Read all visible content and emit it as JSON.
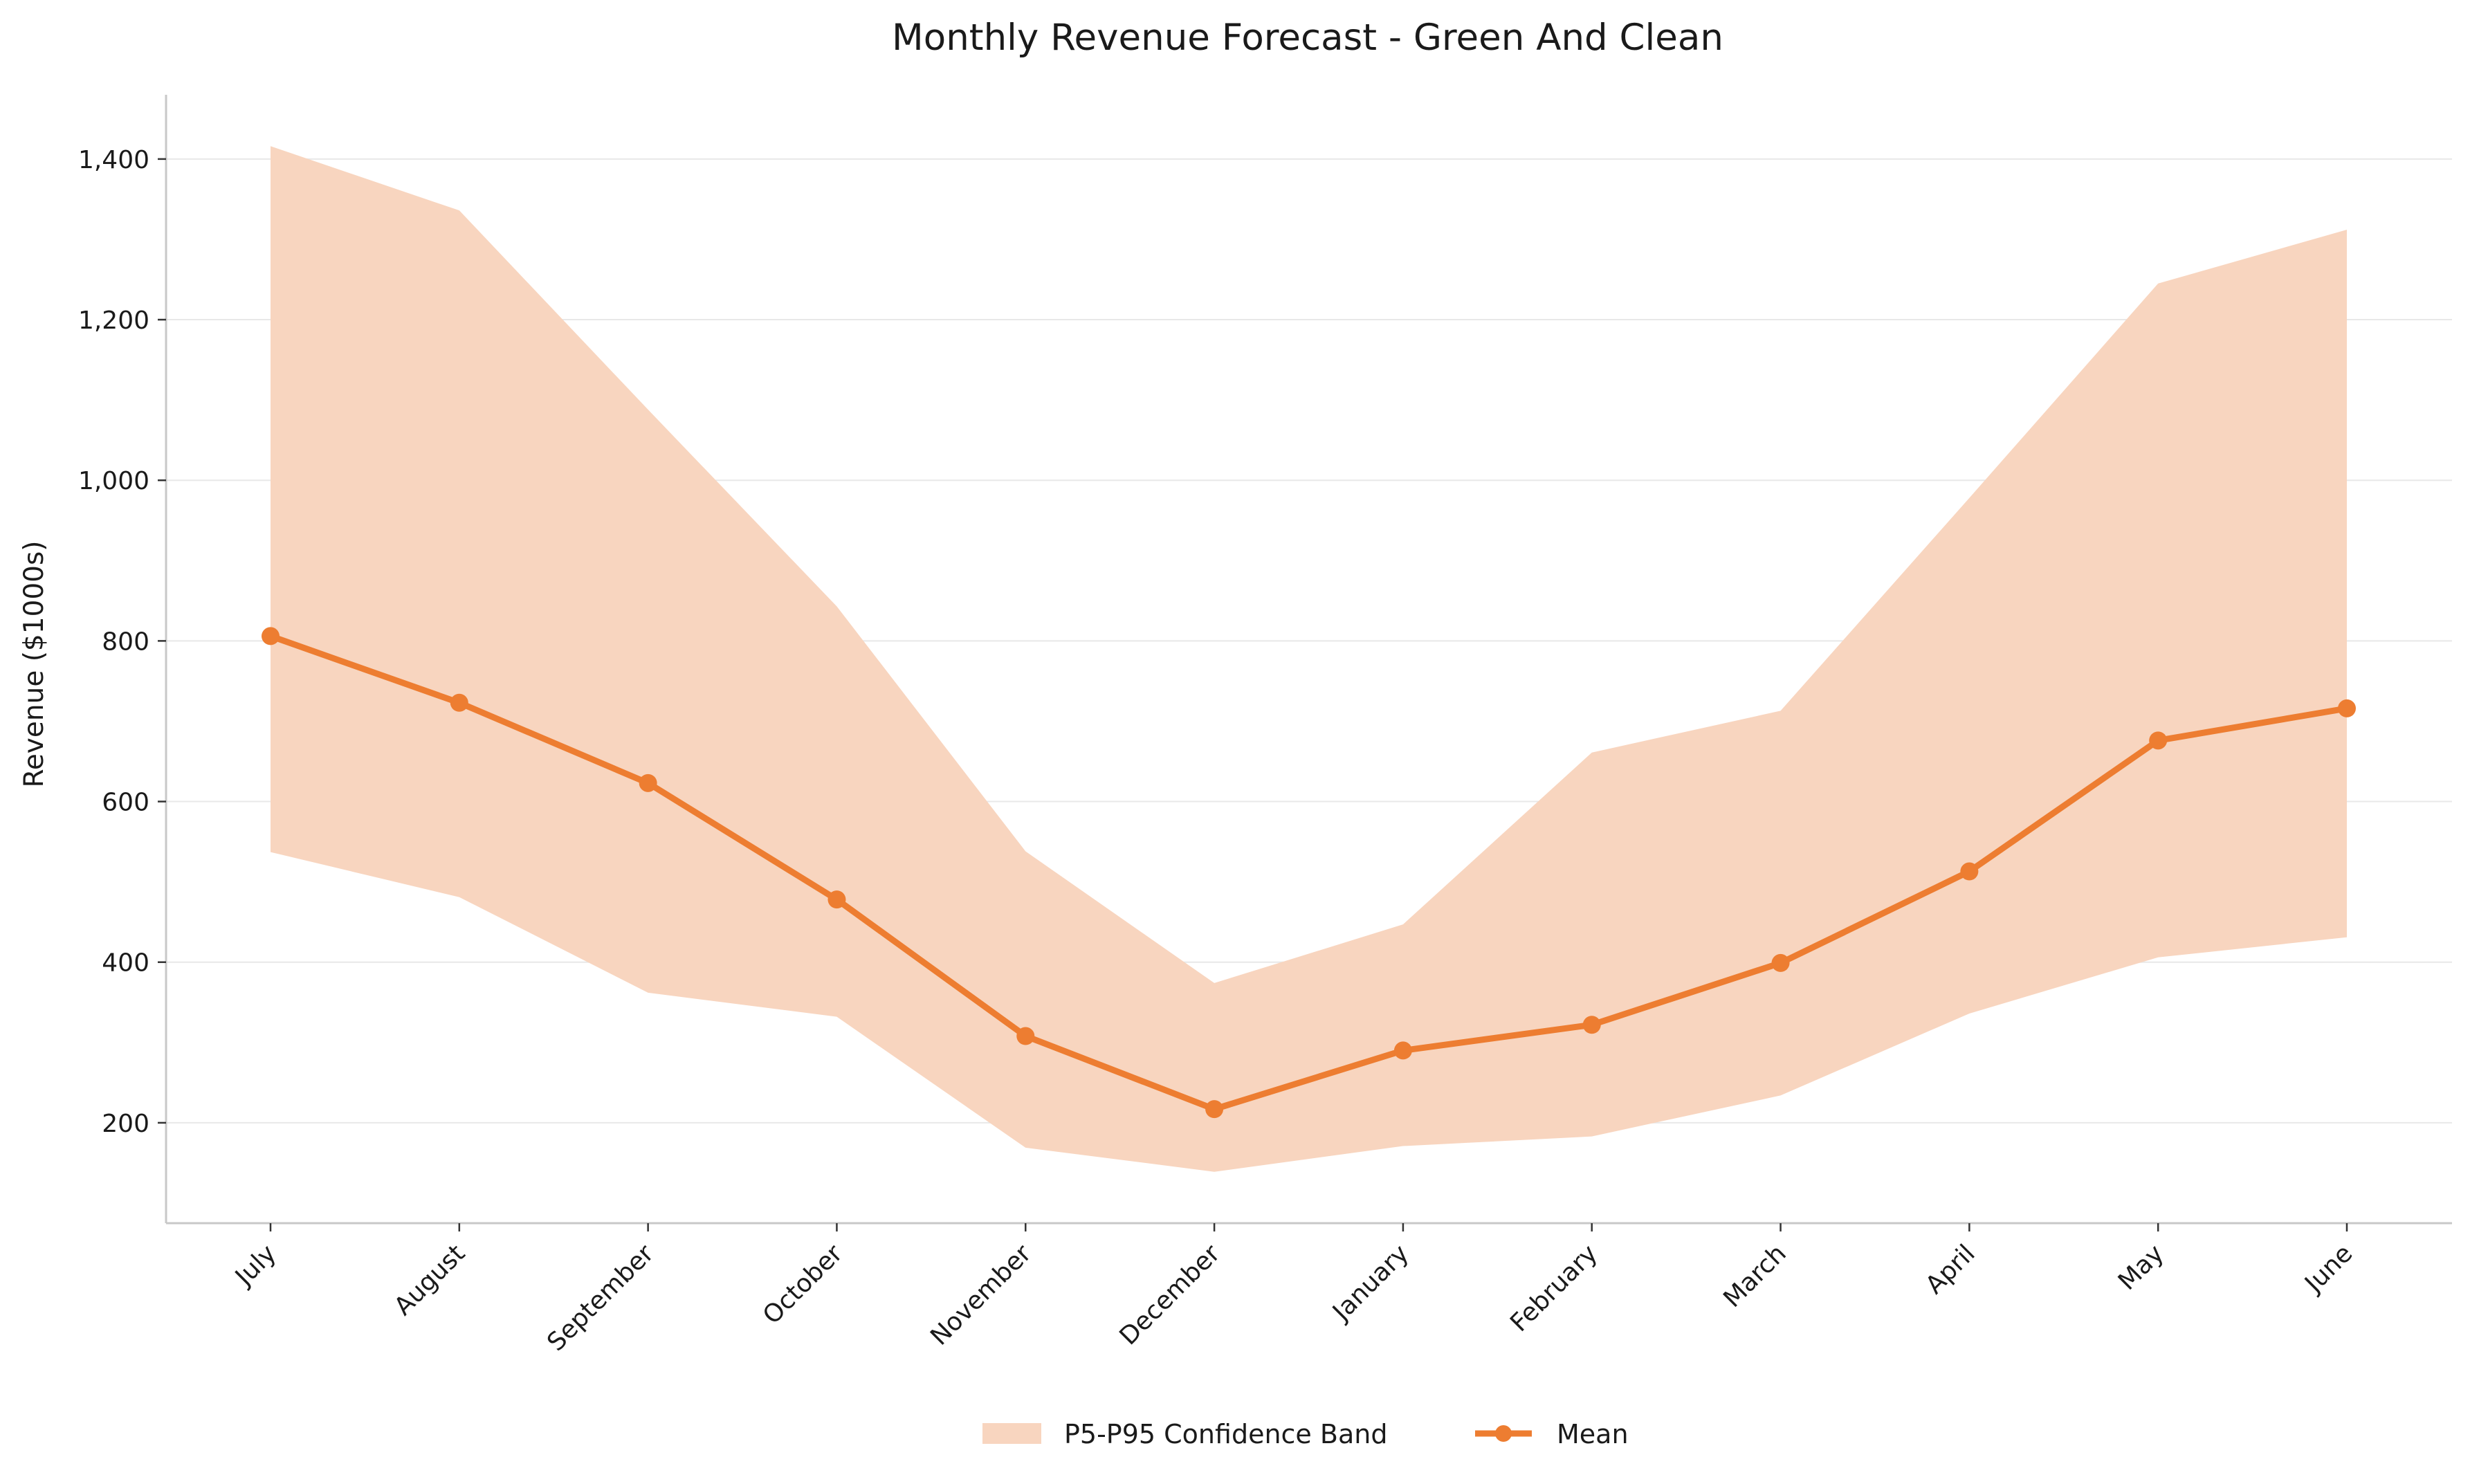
{
  "chart_data": {
    "type": "line",
    "title": "Monthly Revenue Forecast - Green And Clean",
    "xlabel": "",
    "ylabel": "Revenue ($1000s)",
    "categories": [
      "July",
      "August",
      "September",
      "October",
      "November",
      "December",
      "January",
      "February",
      "March",
      "April",
      "May",
      "June"
    ],
    "ylim": [
      75,
      1480
    ],
    "yticks": [
      200,
      400,
      600,
      800,
      1000,
      1200,
      1400
    ],
    "ytick_labels": [
      "200",
      "400",
      "600",
      "800",
      "1,000",
      "1,200",
      "1,400"
    ],
    "grid": "horizontal",
    "legend_position": "bottom-center",
    "band": {
      "name": "P5-P95 Confidence Band",
      "color": "#f8d5bf",
      "lower": [
        537,
        481,
        362,
        332,
        169,
        139,
        171,
        183,
        234,
        336,
        406,
        431
      ],
      "upper": [
        1416,
        1336,
        1088,
        843,
        538,
        374,
        447,
        661,
        713,
        978,
        1245,
        1312
      ]
    },
    "series": [
      {
        "name": "Mean",
        "color": "#ed7d31",
        "values": [
          806,
          723,
          623,
          478,
          308,
          217,
          290,
          322,
          399,
          513,
          676,
          716
        ]
      }
    ]
  }
}
